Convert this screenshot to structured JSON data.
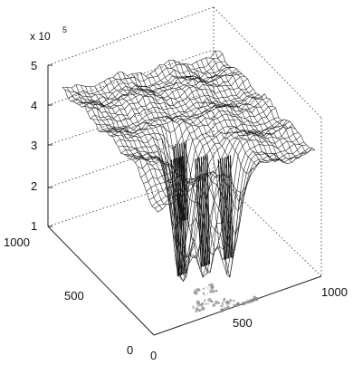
{
  "chart_data": {
    "type": "surface",
    "zaxis": {
      "multiplier": "x 10",
      "exponent": "5",
      "ticks": [
        "1",
        "2",
        "3",
        "4",
        "5"
      ],
      "range": [
        1,
        5
      ]
    },
    "xaxis": {
      "ticks": [
        "0",
        "500",
        "1000"
      ],
      "range": [
        0,
        1000
      ]
    },
    "yaxis": {
      "ticks": [
        "0",
        "500",
        "1000"
      ],
      "range": [
        0,
        1000
      ]
    },
    "surface": {
      "plateau_value": 4.4,
      "wells": [
        {
          "x": 350,
          "y": 290,
          "min": 1.2
        },
        {
          "x": 460,
          "y": 240,
          "min": 1.4
        },
        {
          "x": 560,
          "y": 180,
          "min": 1.6
        },
        {
          "x": 420,
          "y": 380,
          "min": 2.2
        }
      ]
    },
    "grid": true,
    "colors": {
      "mesh": "#1a1a1a",
      "axes": "#222222",
      "shadow": "#888888"
    }
  }
}
